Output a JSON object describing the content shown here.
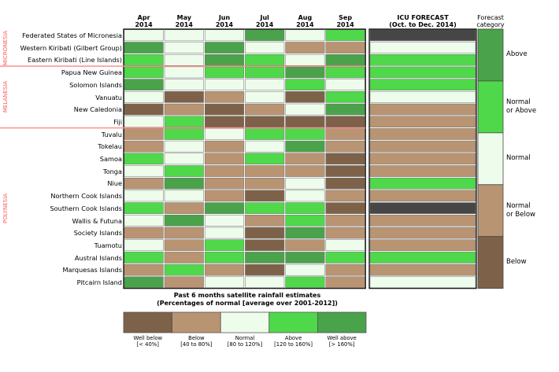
{
  "header": {
    "months": [
      {
        "line1": "Apr",
        "line2": "2014"
      },
      {
        "line1": "May",
        "line2": "2014"
      },
      {
        "line1": "Jun",
        "line2": "2014"
      },
      {
        "line1": "Jul",
        "line2": "2014"
      },
      {
        "line1": "Aug",
        "line2": "2014"
      },
      {
        "line1": "Sep",
        "line2": "2014"
      }
    ],
    "forecast_line1": "ICU FORECAST",
    "forecast_line2": "(Oct. to Dec. 2014)",
    "category_line1": "Forecast",
    "category_line2": "category"
  },
  "regions": [
    {
      "label": "MICRONESIA",
      "rows": [
        0,
        2
      ]
    },
    {
      "label": "MELANESIA",
      "rows": [
        3,
        7
      ]
    },
    {
      "label": "POLYNESIA",
      "rows": [
        8,
        20
      ]
    }
  ],
  "colors": {
    "well_below": "#7d6249",
    "below": "#b99472",
    "normal": "#eefcec",
    "above": "#4ed84a",
    "well_above": "#4aa24a",
    "no_forecast": "#464646",
    "region_line": "#ff8f8f"
  },
  "chart_data": {
    "type": "table",
    "title": "Past 6 months satellite rainfall estimates",
    "subtitle": "(Percentages of normal [average over 2001-2012])",
    "codes": {
      "WB": "Well below",
      "B": "Below",
      "N": "Normal",
      "A": "Above",
      "WA": "Well above",
      "X": "No forecast"
    },
    "islands": [
      "Federated States of Micronesia",
      "Western Kiribati (Gilbert Group)",
      "Eastern Kiribati (Line Islands)",
      "Papua New Guinea",
      "Solomon Islands",
      "Vanuatu",
      "New Caledonia",
      "Fiji",
      "Tuvalu",
      "Tokelau",
      "Samoa",
      "Tonga",
      "Niue",
      "Northern Cook Islands",
      "Southern Cook Islands",
      "Wallis & Futuna",
      "Society Islands",
      "Tuamotu",
      "Austral Islands",
      "Marquesas Islands",
      "Pitcairn Island"
    ],
    "monthly": [
      [
        "N",
        "N",
        "N",
        "WA",
        "N",
        "A"
      ],
      [
        "WA",
        "N",
        "WA",
        "N",
        "B",
        "B"
      ],
      [
        "A",
        "N",
        "WA",
        "A",
        "N",
        "WA"
      ],
      [
        "A",
        "N",
        "A",
        "A",
        "WA",
        "A"
      ],
      [
        "WA",
        "N",
        "N",
        "N",
        "A",
        "N"
      ],
      [
        "N",
        "WB",
        "B",
        "N",
        "WB",
        "A"
      ],
      [
        "WB",
        "B",
        "WB",
        "B",
        "N",
        "WA"
      ],
      [
        "N",
        "A",
        "WB",
        "WB",
        "WB",
        "WB"
      ],
      [
        "B",
        "A",
        "N",
        "A",
        "A",
        "B"
      ],
      [
        "B",
        "N",
        "B",
        "N",
        "WA",
        "B"
      ],
      [
        "A",
        "N",
        "B",
        "A",
        "B",
        "WB"
      ],
      [
        "N",
        "A",
        "B",
        "B",
        "B",
        "WB"
      ],
      [
        "B",
        "WA",
        "B",
        "B",
        "N",
        "WB"
      ],
      [
        "N",
        "N",
        "B",
        "WB",
        "N",
        "B"
      ],
      [
        "A",
        "B",
        "WA",
        "A",
        "A",
        "WB"
      ],
      [
        "N",
        "WA",
        "N",
        "B",
        "A",
        "B"
      ],
      [
        "B",
        "B",
        "N",
        "WB",
        "WA",
        "B"
      ],
      [
        "N",
        "B",
        "A",
        "WB",
        "B",
        "N"
      ],
      [
        "A",
        "B",
        "A",
        "WA",
        "WA",
        "A"
      ],
      [
        "B",
        "A",
        "B",
        "WB",
        "N",
        "B"
      ],
      [
        "WA",
        "B",
        "N",
        "N",
        "A",
        "B"
      ]
    ],
    "forecast": [
      "X",
      "N",
      "A",
      "A",
      "A",
      "N",
      "B",
      "B",
      "B",
      "B",
      "B",
      "B",
      "A",
      "B",
      "X",
      "B",
      "B",
      "B",
      "A",
      "B",
      "N"
    ],
    "legend": [
      {
        "code": "WB",
        "label": "Well below",
        "range": "[< 40%]"
      },
      {
        "code": "B",
        "label": "Below",
        "range": "[40 to 80%]"
      },
      {
        "code": "N",
        "label": "Normal",
        "range": "[80 to 120%]"
      },
      {
        "code": "A",
        "label": "Above",
        "range": "[120 to 160%]"
      },
      {
        "code": "WA",
        "label": "Well above",
        "range": "[> 160%]"
      }
    ],
    "forecast_categories": [
      {
        "code": "WA",
        "label_line1": "Above",
        "label_line2": ""
      },
      {
        "code": "A",
        "label_line1": "Normal",
        "label_line2": "or Above"
      },
      {
        "code": "N",
        "label_line1": "Normal",
        "label_line2": ""
      },
      {
        "code": "B",
        "label_line1": "Normal",
        "label_line2": "or Below"
      },
      {
        "code": "WB",
        "label_line1": "Below",
        "label_line2": ""
      }
    ]
  }
}
